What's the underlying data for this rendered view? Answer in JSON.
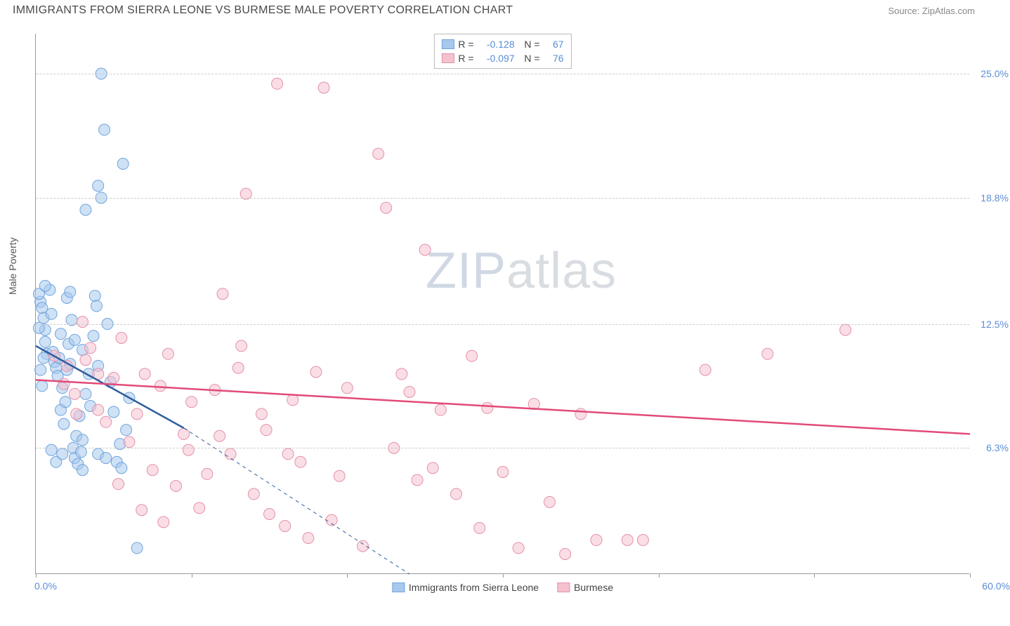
{
  "title": "IMMIGRANTS FROM SIERRA LEONE VS BURMESE MALE POVERTY CORRELATION CHART",
  "source": "Source: ZipAtlas.com",
  "ylabel": "Male Poverty",
  "watermark_a": "ZIP",
  "watermark_b": "atlas",
  "chart": {
    "type": "scatter",
    "xlim": [
      0,
      60
    ],
    "ylim": [
      0,
      27
    ],
    "x_min_label": "0.0%",
    "x_max_label": "60.0%",
    "xtick_positions": [
      0,
      10,
      20,
      30,
      40,
      50,
      60
    ],
    "yticks": [
      {
        "v": 6.3,
        "label": "6.3%"
      },
      {
        "v": 12.5,
        "label": "12.5%"
      },
      {
        "v": 18.8,
        "label": "18.8%"
      },
      {
        "v": 25.0,
        "label": "25.0%"
      }
    ],
    "background": "#ffffff",
    "grid_color": "#cccccc",
    "axis_color": "#999999",
    "series": [
      {
        "name": "Immigrants from Sierra Leone",
        "color_fill": "#a8c8ec",
        "color_stroke": "#6fa4dd",
        "line_color": "#2e5d9f",
        "marker_r": 8,
        "marker_opacity": 0.55,
        "R": "-0.128",
        "N": "67",
        "trend": {
          "x1": 0,
          "y1": 11.4,
          "x2": 9.5,
          "y2": 7.3,
          "dash_x2": 24,
          "dash_y2": 0
        },
        "points": [
          [
            0.3,
            13.6
          ],
          [
            0.4,
            13.3
          ],
          [
            0.5,
            12.8
          ],
          [
            0.6,
            12.2
          ],
          [
            0.6,
            11.6
          ],
          [
            0.7,
            11.0
          ],
          [
            0.9,
            14.2
          ],
          [
            1.0,
            13.0
          ],
          [
            1.1,
            11.1
          ],
          [
            1.2,
            10.6
          ],
          [
            1.3,
            10.3
          ],
          [
            1.4,
            9.9
          ],
          [
            1.5,
            10.8
          ],
          [
            1.6,
            12.0
          ],
          [
            1.6,
            8.2
          ],
          [
            1.7,
            9.3
          ],
          [
            1.8,
            7.5
          ],
          [
            1.9,
            8.6
          ],
          [
            2.0,
            13.8
          ],
          [
            2.1,
            11.5
          ],
          [
            2.2,
            14.1
          ],
          [
            2.3,
            12.7
          ],
          [
            2.4,
            6.3
          ],
          [
            2.5,
            5.8
          ],
          [
            2.6,
            6.9
          ],
          [
            2.7,
            5.5
          ],
          [
            2.8,
            7.9
          ],
          [
            2.9,
            6.1
          ],
          [
            3.0,
            5.2
          ],
          [
            3.2,
            9.0
          ],
          [
            3.4,
            10.0
          ],
          [
            3.5,
            8.4
          ],
          [
            3.7,
            11.9
          ],
          [
            3.8,
            13.9
          ],
          [
            3.9,
            13.4
          ],
          [
            4.0,
            10.4
          ],
          [
            4.2,
            25.0
          ],
          [
            4.4,
            22.2
          ],
          [
            4.6,
            12.5
          ],
          [
            4.8,
            9.6
          ],
          [
            5.0,
            8.1
          ],
          [
            5.2,
            5.6
          ],
          [
            5.4,
            6.5
          ],
          [
            5.6,
            20.5
          ],
          [
            5.8,
            7.2
          ],
          [
            6.0,
            8.8
          ],
          [
            4.0,
            19.4
          ],
          [
            4.2,
            18.8
          ],
          [
            3.2,
            18.2
          ],
          [
            0.2,
            14.0
          ],
          [
            0.3,
            10.2
          ],
          [
            0.4,
            9.4
          ],
          [
            0.2,
            12.3
          ],
          [
            0.5,
            10.8
          ],
          [
            0.6,
            14.4
          ],
          [
            2.0,
            10.2
          ],
          [
            2.5,
            11.7
          ],
          [
            3.0,
            11.2
          ],
          [
            2.2,
            10.5
          ],
          [
            1.0,
            6.2
          ],
          [
            1.3,
            5.6
          ],
          [
            3.0,
            6.7
          ],
          [
            4.0,
            6.0
          ],
          [
            5.5,
            5.3
          ],
          [
            1.7,
            6.0
          ],
          [
            6.5,
            1.3
          ],
          [
            4.5,
            5.8
          ]
        ]
      },
      {
        "name": "Burmese",
        "color_fill": "#f4c2cf",
        "color_stroke": "#e690a8",
        "line_color": "#e24a78",
        "marker_r": 8,
        "marker_opacity": 0.55,
        "R": "-0.097",
        "N": "76",
        "trend": {
          "x1": 0,
          "y1": 9.7,
          "x2": 60,
          "y2": 7.0
        },
        "points": [
          [
            2.0,
            10.4
          ],
          [
            2.5,
            9.0
          ],
          [
            3.0,
            12.6
          ],
          [
            3.5,
            11.3
          ],
          [
            4.0,
            8.2
          ],
          [
            4.5,
            7.6
          ],
          [
            5.0,
            9.8
          ],
          [
            5.5,
            11.8
          ],
          [
            6.0,
            6.6
          ],
          [
            6.5,
            8.0
          ],
          [
            7.0,
            10.0
          ],
          [
            7.5,
            5.2
          ],
          [
            8.0,
            9.4
          ],
          [
            8.5,
            11.0
          ],
          [
            9.0,
            4.4
          ],
          [
            9.5,
            7.0
          ],
          [
            10.0,
            8.6
          ],
          [
            10.5,
            3.3
          ],
          [
            11.0,
            5.0
          ],
          [
            11.5,
            9.2
          ],
          [
            12.0,
            14.0
          ],
          [
            12.5,
            6.0
          ],
          [
            13.0,
            10.3
          ],
          [
            13.5,
            19.0
          ],
          [
            14.0,
            4.0
          ],
          [
            14.5,
            8.0
          ],
          [
            15.0,
            3.0
          ],
          [
            15.5,
            24.5
          ],
          [
            16.0,
            2.4
          ],
          [
            16.5,
            8.7
          ],
          [
            17.0,
            5.6
          ],
          [
            17.5,
            1.8
          ],
          [
            18.0,
            10.1
          ],
          [
            18.5,
            24.3
          ],
          [
            19.0,
            2.7
          ],
          [
            19.5,
            4.9
          ],
          [
            20.0,
            9.3
          ],
          [
            21.0,
            1.4
          ],
          [
            22.0,
            21.0
          ],
          [
            22.5,
            18.3
          ],
          [
            23.0,
            6.3
          ],
          [
            23.5,
            10.0
          ],
          [
            24.0,
            9.1
          ],
          [
            24.5,
            4.7
          ],
          [
            25.0,
            16.2
          ],
          [
            25.5,
            5.3
          ],
          [
            26.0,
            8.2
          ],
          [
            27.0,
            4.0
          ],
          [
            28.0,
            10.9
          ],
          [
            28.5,
            2.3
          ],
          [
            29.0,
            8.3
          ],
          [
            30.0,
            5.1
          ],
          [
            31.0,
            1.3
          ],
          [
            32.0,
            8.5
          ],
          [
            33.0,
            3.6
          ],
          [
            34.0,
            1.0
          ],
          [
            35.0,
            8.0
          ],
          [
            36.0,
            1.7
          ],
          [
            38.0,
            1.7
          ],
          [
            39.0,
            1.7
          ],
          [
            43.0,
            10.2
          ],
          [
            47.0,
            11.0
          ],
          [
            52.0,
            12.2
          ],
          [
            5.3,
            4.5
          ],
          [
            6.8,
            3.2
          ],
          [
            8.2,
            2.6
          ],
          [
            9.8,
            6.2
          ],
          [
            11.8,
            6.9
          ],
          [
            13.2,
            11.4
          ],
          [
            14.8,
            7.2
          ],
          [
            16.2,
            6.0
          ],
          [
            1.8,
            9.5
          ],
          [
            1.2,
            10.9
          ],
          [
            2.6,
            8.0
          ],
          [
            3.2,
            10.7
          ],
          [
            4.0,
            10.0
          ]
        ]
      }
    ]
  }
}
